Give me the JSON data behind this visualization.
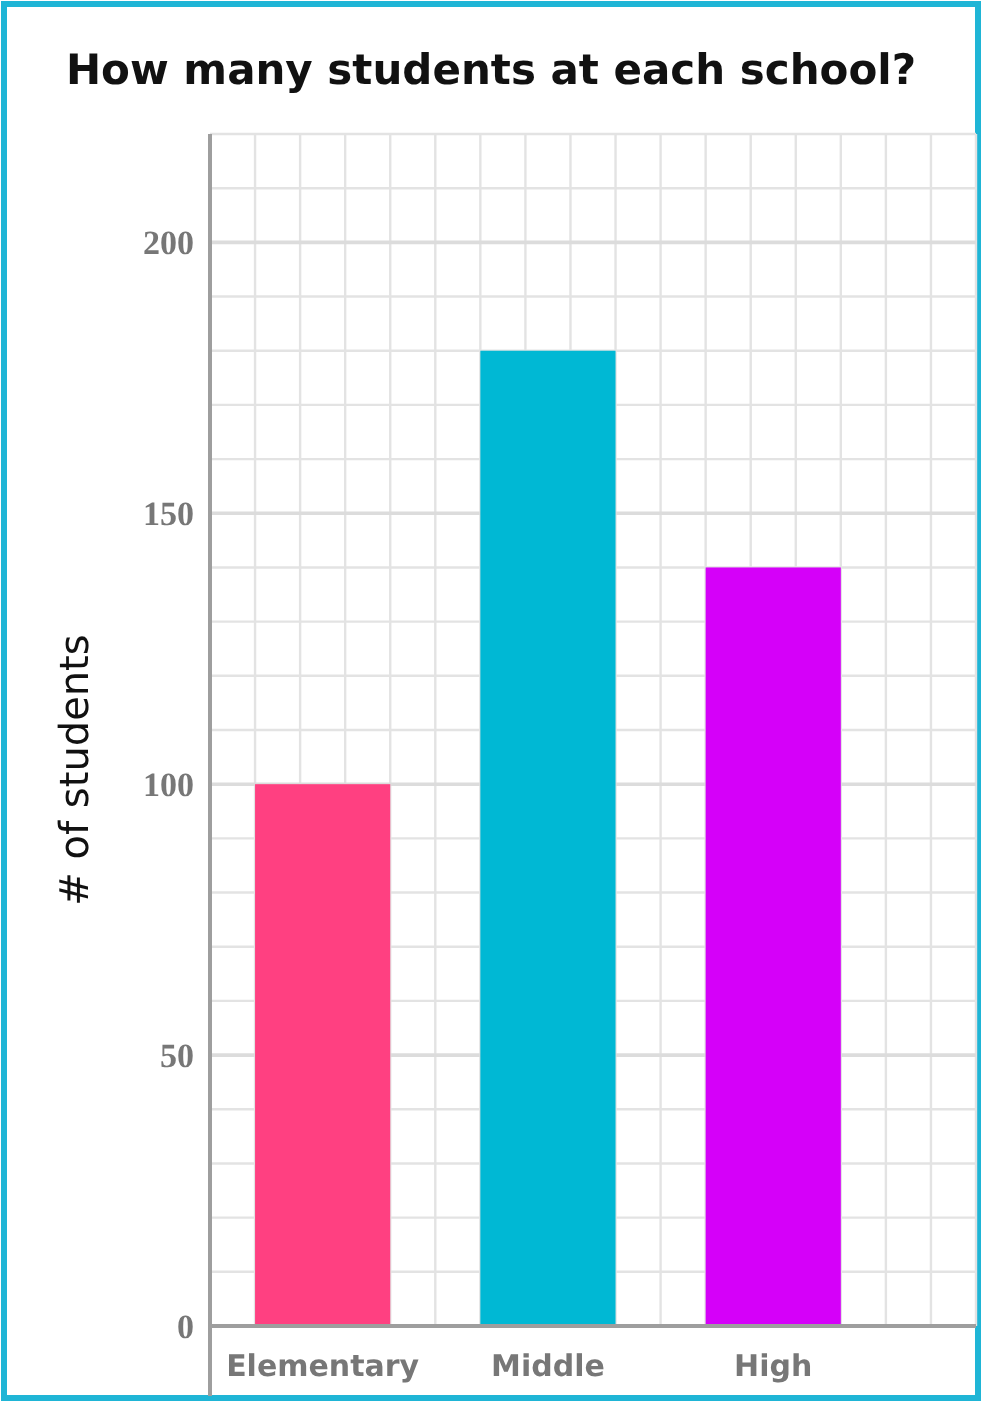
{
  "chart_data": {
    "type": "bar",
    "title": "How many students at each school?",
    "ylabel": "# of students",
    "categories": [
      "Elementary",
      "Middle",
      "High"
    ],
    "values": [
      100,
      180,
      140
    ],
    "colors": [
      "#ff4081",
      "#00b8d4",
      "#d500f9"
    ],
    "ylim": [
      0,
      220
    ],
    "yticks": [
      0,
      50,
      100,
      150,
      200
    ],
    "grid": true
  }
}
